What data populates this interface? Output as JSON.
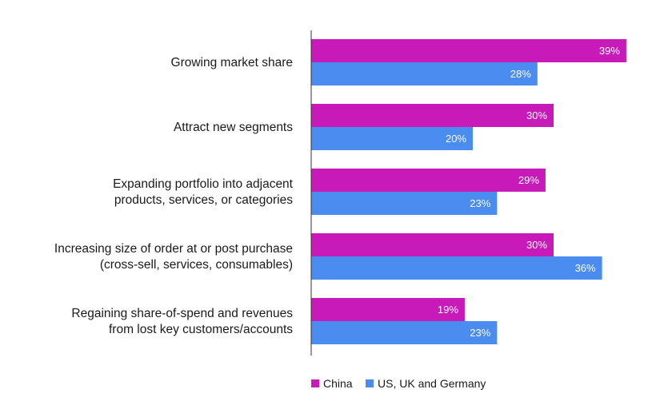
{
  "chart_data": {
    "type": "bar",
    "orientation": "horizontal",
    "categories": [
      [
        "Growing market share"
      ],
      [
        "Attract new segments"
      ],
      [
        "Expanding portfolio into adjacent",
        "products, services, or categories"
      ],
      [
        "Increasing size of order at or post purchase",
        "(cross-sell, services, consumables)"
      ],
      [
        "Regaining share-of-spend and revenues",
        "from lost key customers/accounts"
      ]
    ],
    "series": [
      {
        "name": "China",
        "color": "#c81ab9",
        "values": [
          39,
          30,
          29,
          30,
          19
        ]
      },
      {
        "name": "US, UK and Germany",
        "color": "#4a8cf0",
        "values": [
          28,
          20,
          23,
          36,
          23
        ]
      }
    ],
    "value_suffix": "%",
    "xlim": [
      0,
      42
    ],
    "grid": false,
    "legend": "bottom"
  }
}
